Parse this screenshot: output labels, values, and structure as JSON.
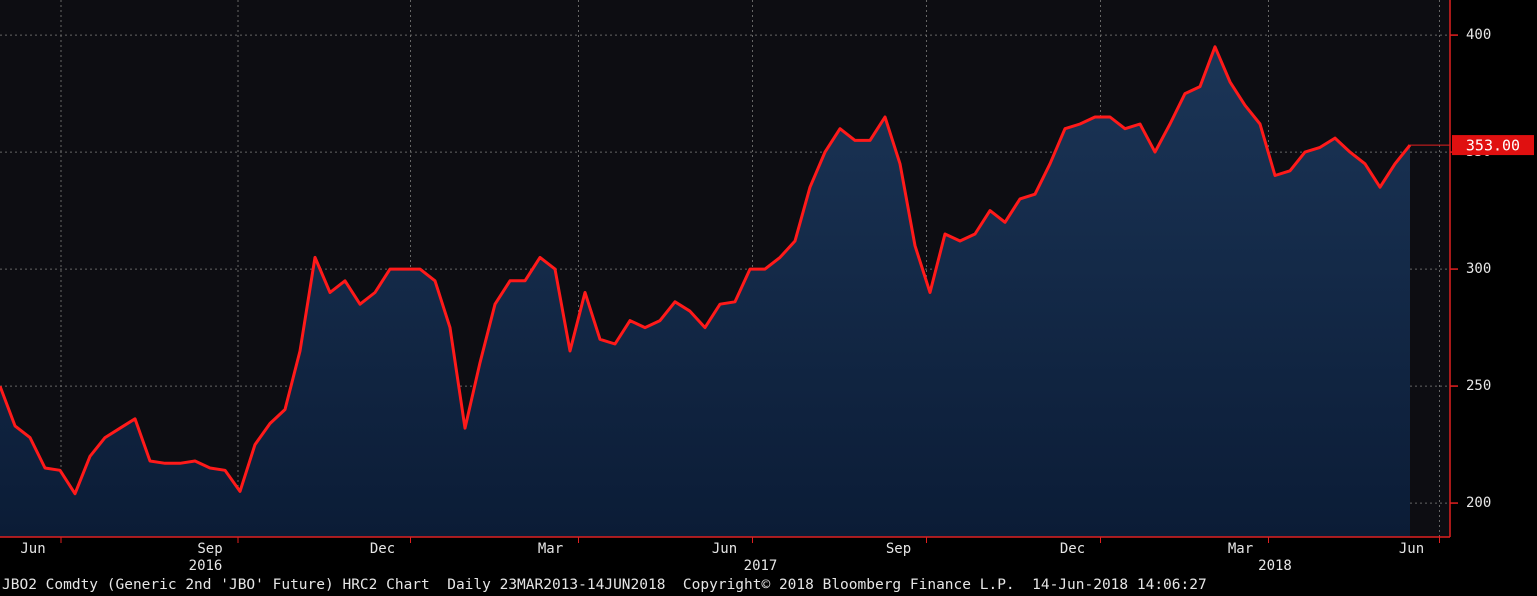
{
  "chart_data": {
    "type": "area",
    "footer": "JBO2 Comdty (Generic 2nd 'JBO' Future) HRC2 Chart  Daily 23MAR2013-14JUN2018  Copyright© 2018 Bloomberg Finance L.P.  14-Jun-2018 14:06:27",
    "values": [
      250,
      233,
      228,
      215,
      214,
      204,
      220,
      228,
      232,
      236,
      218,
      217,
      217,
      218,
      215,
      214,
      205,
      225,
      234,
      240,
      265,
      305,
      290,
      295,
      285,
      290,
      300,
      300,
      300,
      295,
      275,
      232,
      260,
      285,
      295,
      295,
      305,
      300,
      265,
      290,
      270,
      268,
      278,
      275,
      278,
      286,
      282,
      275,
      285,
      286,
      300,
      300,
      305,
      312,
      335,
      350,
      360,
      355,
      355,
      365,
      345,
      310,
      290,
      315,
      312,
      315,
      325,
      320,
      330,
      332,
      345,
      360,
      362,
      365,
      365,
      360,
      362,
      350,
      362,
      375,
      378,
      395,
      380,
      370,
      362,
      340,
      342,
      350,
      352,
      356,
      350,
      345,
      335,
      345,
      353
    ],
    "color": "#ff1a1a",
    "last_value": {
      "value": 353,
      "label": "353.00"
    },
    "xlim": [
      0,
      96
    ],
    "xticks": [
      {
        "value": 2.2,
        "label": "Jun"
      },
      {
        "value": 14,
        "label": "Sep"
      },
      {
        "value": 25.5,
        "label": "Dec"
      },
      {
        "value": 36.7,
        "label": "Mar"
      },
      {
        "value": 48.3,
        "label": "Jun"
      },
      {
        "value": 59.9,
        "label": "Sep"
      },
      {
        "value": 71.5,
        "label": "Dec"
      },
      {
        "value": 82.7,
        "label": "Mar"
      },
      {
        "value": 94.1,
        "label": "Jun"
      }
    ],
    "years": [
      {
        "value": 13.7,
        "label": "2016"
      },
      {
        "value": 50.7,
        "label": "2017"
      },
      {
        "value": 85,
        "label": "2018"
      }
    ],
    "ylim": [
      185.5,
      415
    ],
    "yticks": [
      200,
      250,
      300,
      350,
      400
    ],
    "grid": true
  }
}
